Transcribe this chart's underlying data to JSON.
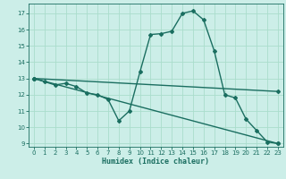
{
  "title": "",
  "xlabel": "Humidex (Indice chaleur)",
  "background_color": "#cceee8",
  "grid_color": "#aaddcc",
  "line_color": "#1a6e60",
  "xlim": [
    -0.5,
    23.5
  ],
  "ylim": [
    8.8,
    17.6
  ],
  "yticks": [
    9,
    10,
    11,
    12,
    13,
    14,
    15,
    16,
    17
  ],
  "xticks": [
    0,
    1,
    2,
    3,
    4,
    5,
    6,
    7,
    8,
    9,
    10,
    11,
    12,
    13,
    14,
    15,
    16,
    17,
    18,
    19,
    20,
    21,
    22,
    23
  ],
  "line1_x": [
    0,
    1,
    2,
    3,
    4,
    5,
    6,
    7,
    8,
    9,
    10,
    11,
    12,
    13,
    14,
    15,
    16,
    17,
    18,
    19,
    20,
    21,
    22,
    23
  ],
  "line1_y": [
    13.0,
    12.8,
    12.6,
    12.7,
    12.5,
    12.1,
    12.0,
    11.7,
    10.4,
    11.0,
    13.4,
    15.7,
    15.75,
    15.9,
    17.0,
    17.15,
    16.6,
    14.7,
    12.0,
    11.8,
    10.5,
    9.8,
    9.1,
    9.0
  ],
  "line2_x": [
    0,
    23
  ],
  "line2_y": [
    13.0,
    12.2
  ],
  "line3_x": [
    0,
    23
  ],
  "line3_y": [
    13.0,
    9.0
  ],
  "marker_size": 2.0,
  "line_width": 1.0,
  "xlabel_fontsize": 6.0,
  "tick_fontsize": 5.0
}
